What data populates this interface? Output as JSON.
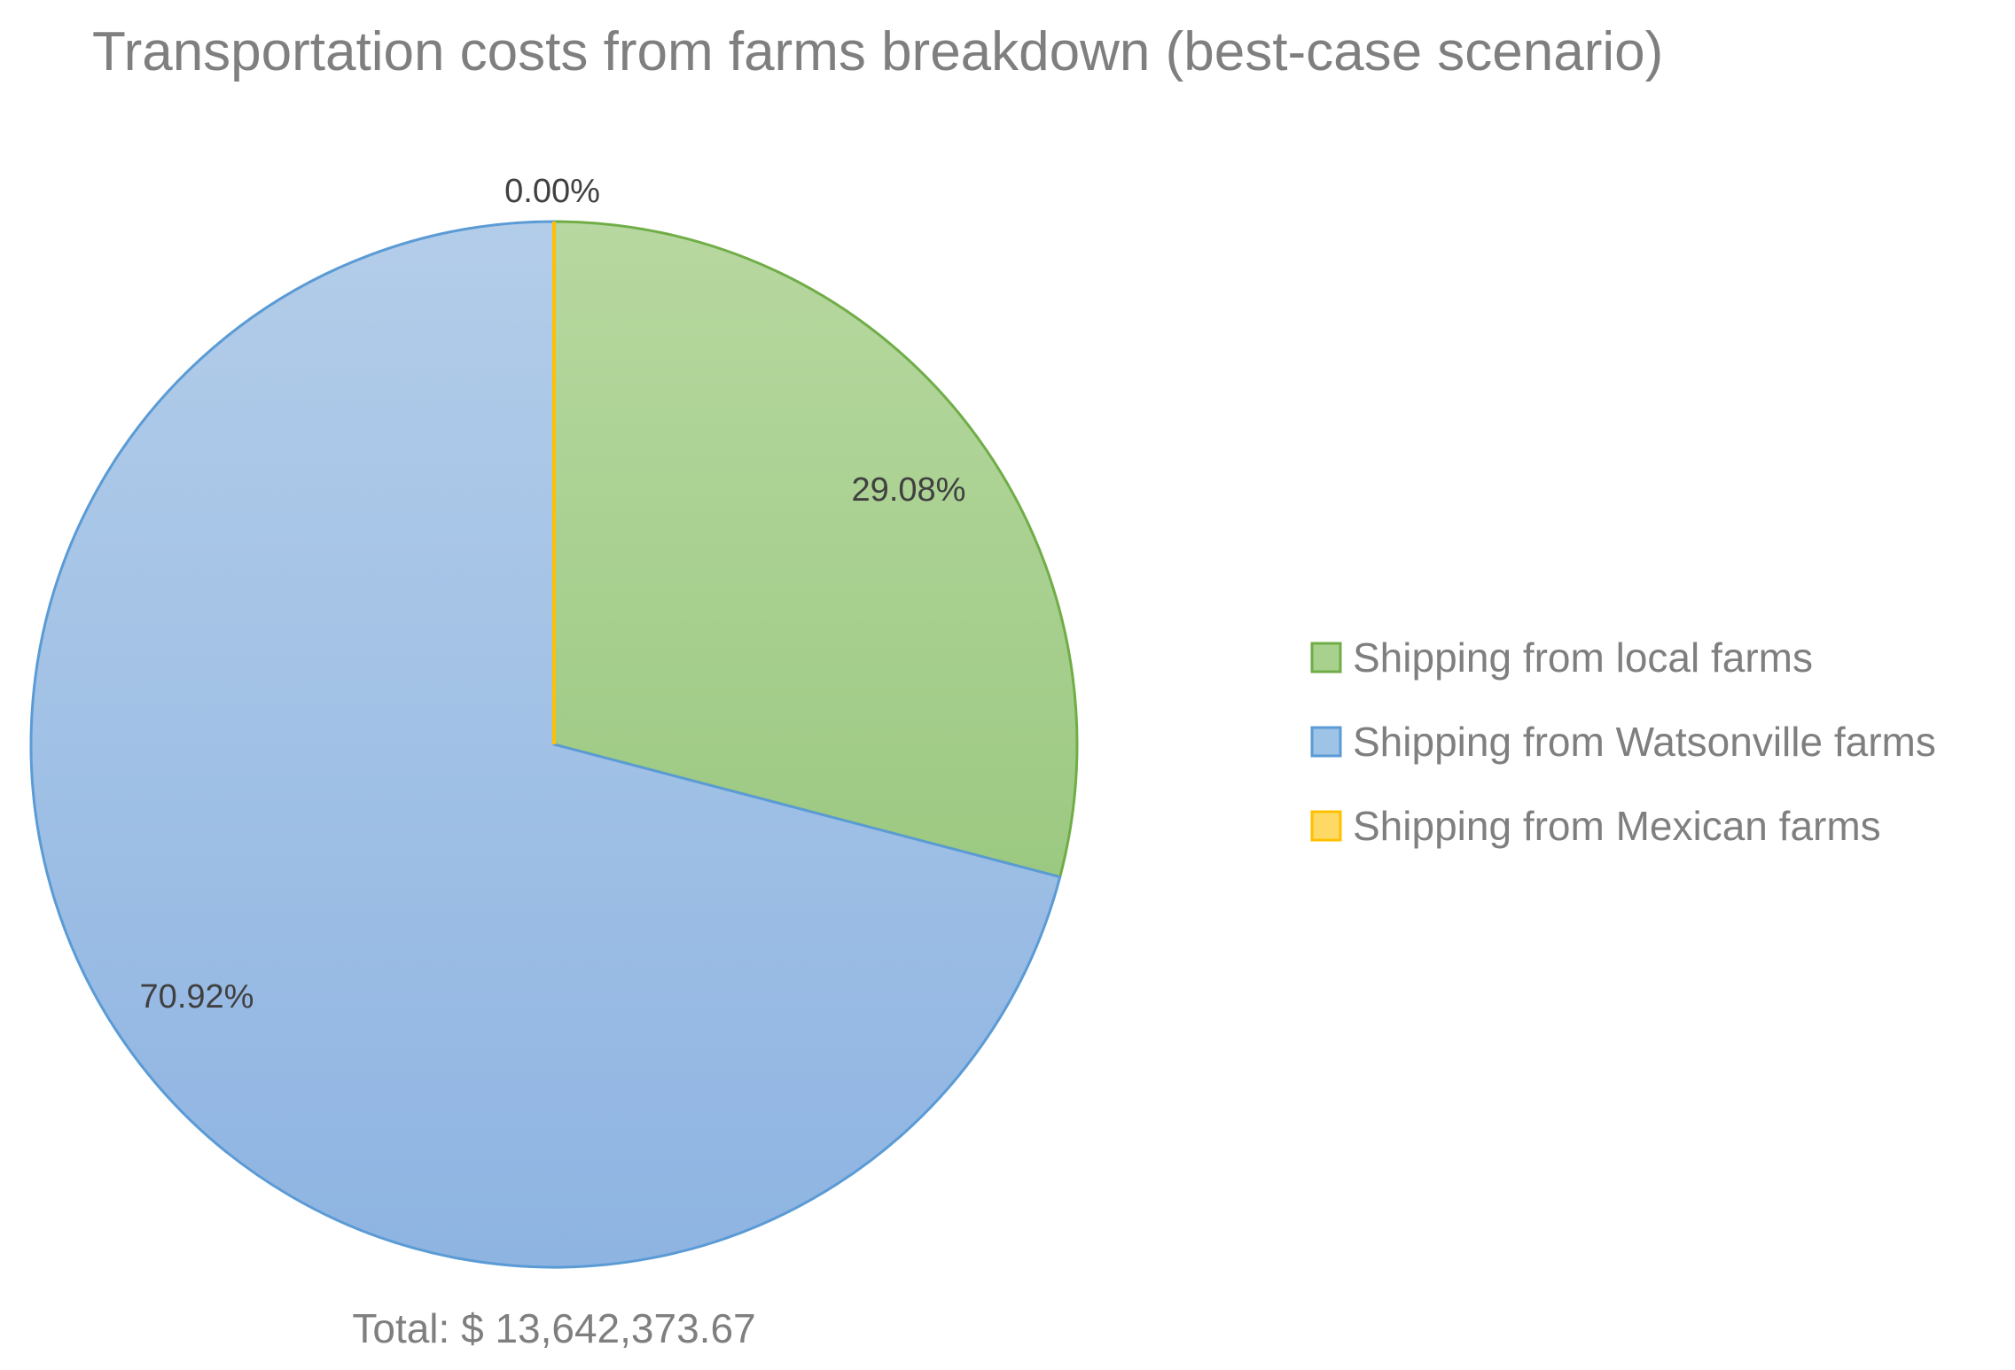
{
  "chart_data": {
    "type": "pie",
    "title": "Transportation costs from farms breakdown (best-case scenario)",
    "slices": [
      {
        "name": "Shipping from local farms",
        "percent": 29.08,
        "label": "29.08%",
        "color": "#a9d18e",
        "gradient_top": "#b7d8a0",
        "gradient_bottom": "#9cc982",
        "stroke": "#70ad47"
      },
      {
        "name": "Shipping from Watsonville farms",
        "percent": 70.92,
        "label": "70.92%",
        "color": "#9dc3e6",
        "gradient_top": "#b3cde9",
        "gradient_bottom": "#8eb4e2",
        "stroke": "#5b9bd5"
      },
      {
        "name": "Shipping from Mexican farms",
        "percent": 0.0,
        "label": "0.00%",
        "color": "#ffd966",
        "gradient_top": "#ffe08a",
        "gradient_bottom": "#ffd24d",
        "stroke": "#ffc000"
      }
    ],
    "legend_position": "right",
    "footer": "Total: $ 13,642,373.67"
  }
}
